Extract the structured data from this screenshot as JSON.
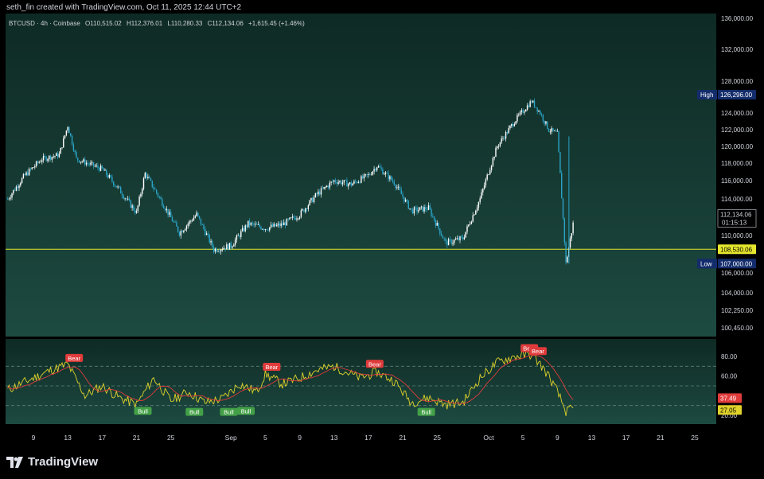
{
  "credit": "seth_fin created with TradingView.com, Oct 11, 2025 12:44 UTC+2",
  "brand": "TradingView",
  "colors": {
    "background": "#000000",
    "pane_top": "#0e2a24",
    "pane_bottom": "#1d4a41",
    "candle_up": "#ffffff",
    "candle_down": "#2aa4c8",
    "support_line": "#e6e62e",
    "rsi_line": "#e0d22b",
    "rsi_ma": "#e03b3b",
    "bear": "#e03b3b",
    "bull": "#43a047",
    "text": "#d1d4dc"
  },
  "header": {
    "symbol": "BTCUSD · 4h · Coinbase",
    "o_label": "O",
    "o": "110,515.02",
    "h_label": "H",
    "h": "112,376.01",
    "l_label": "L",
    "l": "110,280.33",
    "c_label": "C",
    "c": "112,134.06",
    "change": "+1,615.45 (+1.46%)"
  },
  "chart_data": [
    {
      "type": "candlestick",
      "title": "BTCUSD · 4h · Coinbase",
      "timeframe": "4h",
      "y_ticks": [
        "136,000.00",
        "132,000.00",
        "128,000.00",
        "124,000.00",
        "122,000.00",
        "120,000.00",
        "118,000.00",
        "116,000.00",
        "114,000.00",
        "110,000.00",
        "106,000.00",
        "104,000.00",
        "102,250.00",
        "100,450.00"
      ],
      "x_ticks": [
        "9",
        "13",
        "17",
        "21",
        "25",
        "Sep",
        "5",
        "9",
        "13",
        "17",
        "21",
        "25",
        "Oct",
        "5",
        "9",
        "13",
        "17",
        "21",
        "25"
      ],
      "last_price": "112,134.06",
      "countdown": "01:15:13",
      "high_label": "High",
      "high_value": "126,296.00",
      "low_label": "Low",
      "low_value": "107,000.00",
      "support_level": "108,530.06",
      "price_path_approx": [
        {
          "date": "2025-08-06",
          "close": 114000
        },
        {
          "date": "2025-08-08",
          "close": 116600
        },
        {
          "date": "2025-08-10",
          "close": 118500
        },
        {
          "date": "2025-08-12",
          "close": 119000
        },
        {
          "date": "2025-08-13",
          "close": 122500
        },
        {
          "date": "2025-08-14",
          "close": 118500
        },
        {
          "date": "2025-08-17",
          "close": 117300
        },
        {
          "date": "2025-08-19",
          "close": 115000
        },
        {
          "date": "2025-08-21",
          "close": 112500
        },
        {
          "date": "2025-08-22",
          "close": 116800
        },
        {
          "date": "2025-08-24",
          "close": 113600
        },
        {
          "date": "2025-08-26",
          "close": 110300
        },
        {
          "date": "2025-08-28",
          "close": 112300
        },
        {
          "date": "2025-08-30",
          "close": 108500
        },
        {
          "date": "2025-09-01",
          "close": 108900
        },
        {
          "date": "2025-09-03",
          "close": 111300
        },
        {
          "date": "2025-09-05",
          "close": 110800
        },
        {
          "date": "2025-09-07",
          "close": 111200
        },
        {
          "date": "2025-09-09",
          "close": 112300
        },
        {
          "date": "2025-09-11",
          "close": 114500
        },
        {
          "date": "2025-09-13",
          "close": 116000
        },
        {
          "date": "2025-09-15",
          "close": 115600
        },
        {
          "date": "2025-09-17",
          "close": 116600
        },
        {
          "date": "2025-09-18",
          "close": 117700
        },
        {
          "date": "2025-09-20",
          "close": 115800
        },
        {
          "date": "2025-09-22",
          "close": 112700
        },
        {
          "date": "2025-09-24",
          "close": 113000
        },
        {
          "date": "2025-09-26",
          "close": 109200
        },
        {
          "date": "2025-09-28",
          "close": 109700
        },
        {
          "date": "2025-09-30",
          "close": 114000
        },
        {
          "date": "2025-10-02",
          "close": 120000
        },
        {
          "date": "2025-10-04",
          "close": 123000
        },
        {
          "date": "2025-10-06",
          "close": 125500
        },
        {
          "date": "2025-10-07",
          "close": 124000
        },
        {
          "date": "2025-10-08",
          "close": 122000
        },
        {
          "date": "2025-10-09",
          "close": 121500
        },
        {
          "date": "2025-10-10",
          "close": 107000
        },
        {
          "date": "2025-10-11",
          "close": 112134
        }
      ]
    },
    {
      "type": "line",
      "title": "RSI",
      "y_ticks": [
        "80.00",
        "60.00",
        "40.00",
        "20.00"
      ],
      "band_levels": [
        70,
        50,
        30
      ],
      "rsi_value": "27.05",
      "ma_value": "37.49",
      "rsi_approx": [
        {
          "date": "2025-08-06",
          "value": 46
        },
        {
          "date": "2025-08-09",
          "value": 58
        },
        {
          "date": "2025-08-11",
          "value": 66
        },
        {
          "date": "2025-08-13",
          "value": 72
        },
        {
          "date": "2025-08-15",
          "value": 40
        },
        {
          "date": "2025-08-17",
          "value": 50
        },
        {
          "date": "2025-08-19",
          "value": 38
        },
        {
          "date": "2025-08-21",
          "value": 31
        },
        {
          "date": "2025-08-23",
          "value": 58
        },
        {
          "date": "2025-08-25",
          "value": 35
        },
        {
          "date": "2025-08-27",
          "value": 44
        },
        {
          "date": "2025-08-29",
          "value": 33
        },
        {
          "date": "2025-08-31",
          "value": 37
        },
        {
          "date": "2025-09-02",
          "value": 52
        },
        {
          "date": "2025-09-04",
          "value": 44
        },
        {
          "date": "2025-09-05",
          "value": 62
        },
        {
          "date": "2025-09-07",
          "value": 52
        },
        {
          "date": "2025-09-09",
          "value": 58
        },
        {
          "date": "2025-09-11",
          "value": 66
        },
        {
          "date": "2025-09-13",
          "value": 70
        },
        {
          "date": "2025-09-16",
          "value": 58
        },
        {
          "date": "2025-09-18",
          "value": 64
        },
        {
          "date": "2025-09-20",
          "value": 55
        },
        {
          "date": "2025-09-22",
          "value": 33
        },
        {
          "date": "2025-09-24",
          "value": 38
        },
        {
          "date": "2025-09-26",
          "value": 31
        },
        {
          "date": "2025-09-28",
          "value": 33
        },
        {
          "date": "2025-09-30",
          "value": 58
        },
        {
          "date": "2025-10-02",
          "value": 74
        },
        {
          "date": "2025-10-04",
          "value": 80
        },
        {
          "date": "2025-10-06",
          "value": 82
        },
        {
          "date": "2025-10-07",
          "value": 72
        },
        {
          "date": "2025-10-08",
          "value": 60
        },
        {
          "date": "2025-10-09",
          "value": 44
        },
        {
          "date": "2025-10-10",
          "value": 24
        },
        {
          "date": "2025-10-11",
          "value": 27
        }
      ],
      "signals": [
        {
          "label": "Bear",
          "date": "2025-08-13",
          "rsi": 72
        },
        {
          "label": "Bull",
          "date": "2025-08-21",
          "rsi": 31
        },
        {
          "label": "Bull",
          "date": "2025-08-27",
          "rsi": 30
        },
        {
          "label": "Bull",
          "date": "2025-08-31",
          "rsi": 30
        },
        {
          "label": "Bull",
          "date": "2025-09-02",
          "rsi": 31
        },
        {
          "label": "Bear",
          "date": "2025-09-05",
          "rsi": 63
        },
        {
          "label": "Bear",
          "date": "2025-09-17",
          "rsi": 66
        },
        {
          "label": "Bull",
          "date": "2025-09-23",
          "rsi": 30
        },
        {
          "label": "Bear",
          "date": "2025-10-05",
          "rsi": 82
        },
        {
          "label": "Bear",
          "date": "2025-10-06",
          "rsi": 79
        }
      ]
    }
  ]
}
